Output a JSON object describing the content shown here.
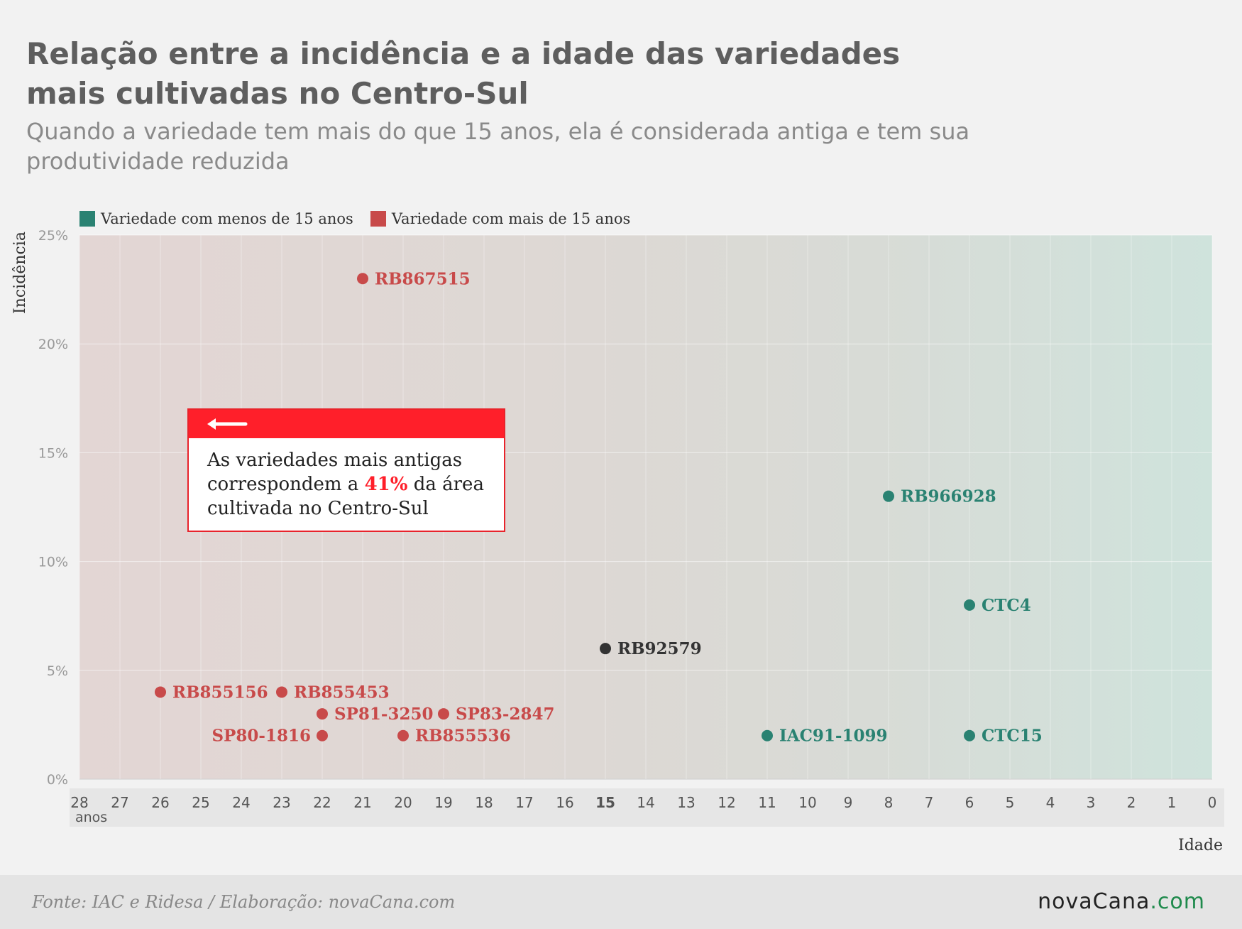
{
  "title": "Relação entre a incidência e a idade das variedades mais cultivadas no Centro-Sul",
  "subtitle": "Quando a variedade tem mais do que 15 anos, ela é considerada antiga e tem sua produtividade reduzida",
  "legend": [
    {
      "label": "Variedade com menos de 15 anos",
      "color": "#2a8272"
    },
    {
      "label": "Variedade com mais de 15 anos",
      "color": "#c84a4a"
    }
  ],
  "callout": {
    "text_before": "As variedades mais antigas correspondem a ",
    "highlight": "41%",
    "text_after": " da área cultivada no Centro-Sul"
  },
  "footer": {
    "source": "Fonte: IAC e Ridesa / Elaboração: novaCana.com",
    "logo_main": "novaCana",
    "logo_domain": ".com"
  },
  "chart_data": {
    "type": "scatter",
    "xlabel": "Idade",
    "ylabel": "Incidência",
    "x_first_tick_suffix": "anos",
    "xlim": [
      28,
      0
    ],
    "ylim": [
      0,
      25
    ],
    "x_ticks": [
      28,
      27,
      26,
      25,
      24,
      23,
      22,
      21,
      20,
      19,
      18,
      17,
      16,
      15,
      14,
      13,
      12,
      11,
      10,
      9,
      8,
      7,
      6,
      5,
      4,
      3,
      2,
      1,
      0
    ],
    "y_ticks": [
      "0%",
      "5%",
      "10%",
      "15%",
      "20%",
      "25%"
    ],
    "y_tick_values": [
      0,
      5,
      10,
      15,
      20,
      25
    ],
    "grid": true,
    "colors": {
      "old": "#c84a4a",
      "new": "#2a8272",
      "neutral": "#333333"
    },
    "points": [
      {
        "name": "RB867515",
        "x": 21,
        "y": 23,
        "group": "old"
      },
      {
        "name": "RB855156",
        "x": 26,
        "y": 4,
        "group": "old"
      },
      {
        "name": "RB855453",
        "x": 23,
        "y": 4,
        "group": "old"
      },
      {
        "name": "SP81-3250",
        "x": 22,
        "y": 3,
        "group": "old"
      },
      {
        "name": "SP80-1816",
        "x": 22,
        "y": 2,
        "group": "old",
        "label_side": "left"
      },
      {
        "name": "SP83-2847",
        "x": 19,
        "y": 3,
        "group": "old"
      },
      {
        "name": "RB855536",
        "x": 20,
        "y": 2,
        "group": "old"
      },
      {
        "name": "RB92579",
        "x": 15,
        "y": 6,
        "group": "neutral"
      },
      {
        "name": "RB966928",
        "x": 8,
        "y": 13,
        "group": "new"
      },
      {
        "name": "CTC4",
        "x": 6,
        "y": 8,
        "group": "new"
      },
      {
        "name": "IAC91-1099",
        "x": 11,
        "y": 2,
        "group": "new"
      },
      {
        "name": "CTC15",
        "x": 6,
        "y": 2,
        "group": "new"
      }
    ]
  }
}
